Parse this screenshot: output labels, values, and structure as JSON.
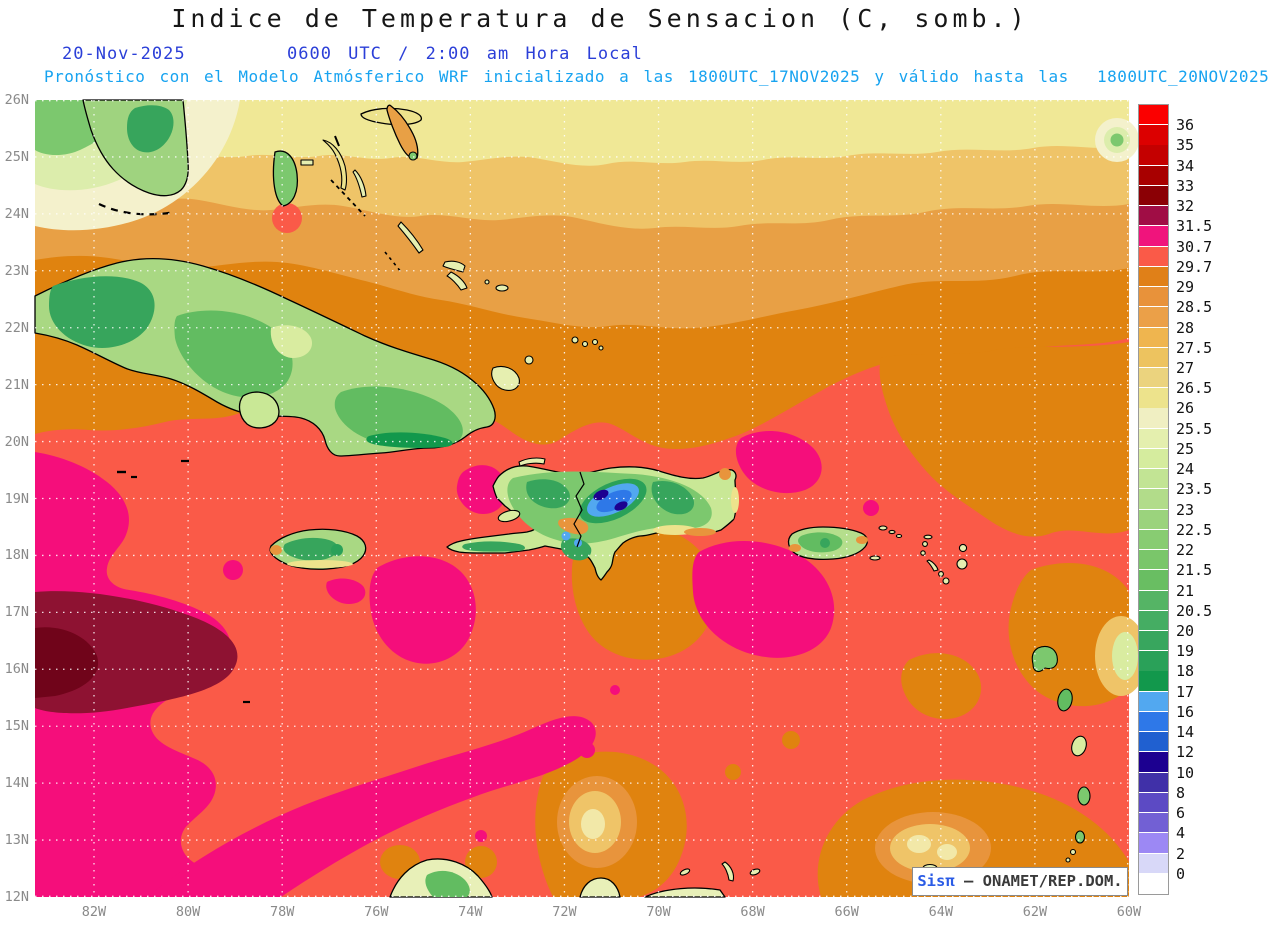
{
  "header": {
    "title": "Indice de Temperatura de Sensacion (C, somb.)",
    "valid_date": "20-Nov-2025",
    "valid_time": "0600 UTC / 2:00 am Hora Local",
    "model_note": "Pronóstico con el Modelo Atmósferico WRF inicializado a las 1800UTC_17NOV2025 y válido hasta las  1800UTC_20NOV2025"
  },
  "axes": {
    "lat_labels": [
      "26N",
      "25N",
      "24N",
      "23N",
      "22N",
      "21N",
      "20N",
      "19N",
      "18N",
      "17N",
      "16N",
      "15N",
      "14N",
      "13N",
      "12N"
    ],
    "lon_labels": [
      "82W",
      "80W",
      "78W",
      "76W",
      "74W",
      "72W",
      "70W",
      "68W",
      "66W",
      "64W",
      "62W",
      "60W"
    ]
  },
  "colorbar": {
    "boundary_labels": [
      "36",
      "35",
      "34",
      "33",
      "32",
      "31.5",
      "30.7",
      "29.7",
      "29",
      "28.5",
      "28",
      "27.5",
      "27",
      "26.5",
      "26",
      "25.5",
      "25",
      "24",
      "23.5",
      "23",
      "22.5",
      "22",
      "21.5",
      "21",
      "20.5",
      "20",
      "19",
      "18",
      "17",
      "16",
      "14",
      "12",
      "10",
      "8",
      "6",
      "4",
      "2",
      "0"
    ],
    "segment_colors": [
      "#FB0000",
      "#DC0000",
      "#C40000",
      "#A80000",
      "#8B0005",
      "#A00D45",
      "#F0147C",
      "#FA5A48",
      "#E08018",
      "#E8923A",
      "#EBA048",
      "#EFB54F",
      "#EDC35F",
      "#EBD37E",
      "#EDE38C",
      "#F0EFC2",
      "#E4EFAE",
      "#D5EC9E",
      "#C2E494",
      "#B2DC8A",
      "#9BD37D",
      "#88CC72",
      "#7AC66A",
      "#69BE62",
      "#55B465",
      "#45AD63",
      "#38A65E",
      "#2AA159",
      "#12984C",
      "#52A8F0",
      "#2E78E8",
      "#2060D0",
      "#1C0090",
      "#4030A8",
      "#5C4AC4",
      "#7260D4",
      "#9C88F4",
      "#D8D8F8",
      "#FFFFFF"
    ]
  },
  "watermark": {
    "prefix": "Sis",
    "pi": "π",
    "suffix": " – ONAMET/REP.DOM."
  },
  "palette": {
    "salmon": "#FA5A48",
    "deep_orange": "#E0830F",
    "orange": "#E8A045",
    "tan": "#EFC468",
    "pale_yellow": "#F0E896",
    "cream": "#F4F1CC",
    "pale_green": "#DCEDAC",
    "nw_green": "#7CC86E",
    "magenta": "#F50E7B",
    "maroon_outer": "#8E1232",
    "maroon_core": "#70041A",
    "hot_core": "#F2E8A8",
    "land_base": "#C9E896",
    "land_base2": "#A9D883",
    "land_green": "#7CC86E",
    "land_green2": "#62BC61",
    "land_dark": "#37A55C",
    "land_dark2": "#2AA159",
    "land_darkest": "#12984C",
    "land_pale": "#D9ECA0",
    "land_yellow": "#EDE38C",
    "land_orange": "#E8943C",
    "island_pale": "#E6EFB0",
    "blue_light": "#52A8F0",
    "blue_mid": "#2E78E8",
    "navy": "#1C0090",
    "florida_green": "#9FD37F",
    "pr_green": "#B5DE8C",
    "sa_land": "#E8F0B8"
  }
}
